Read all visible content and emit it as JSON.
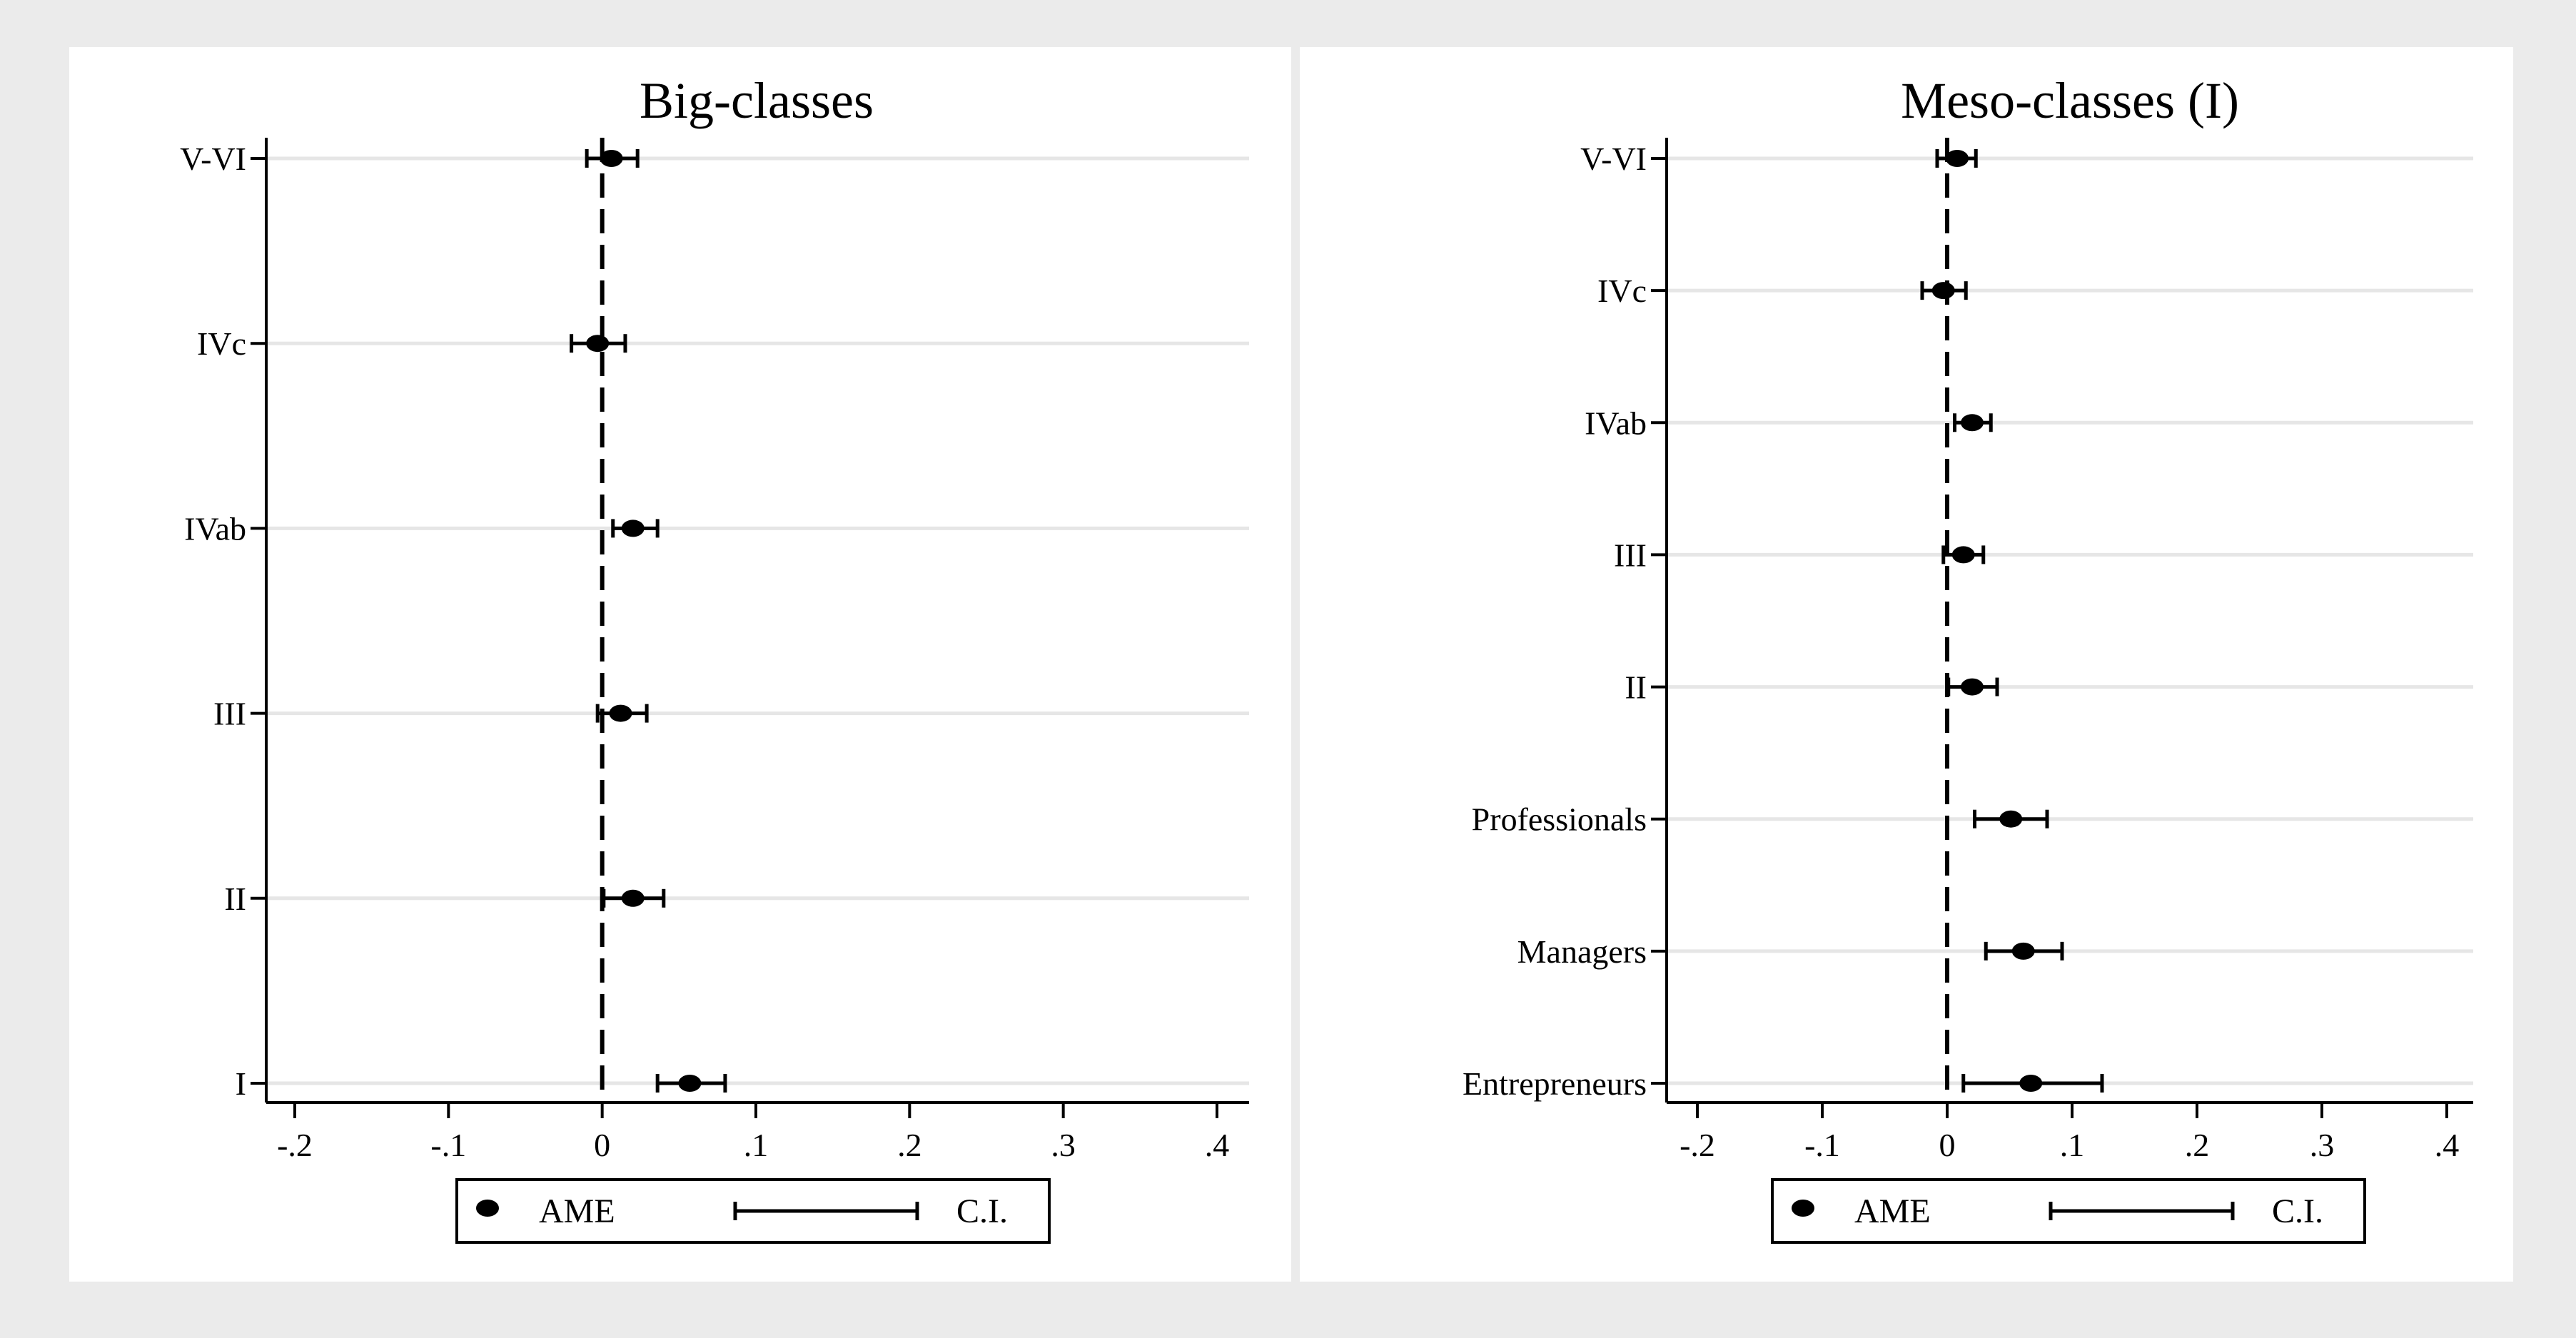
{
  "chart_data": [
    {
      "type": "scatter",
      "title": "Big-classes",
      "categories": [
        "V-VI",
        "IVc",
        "IVab",
        "III",
        "II",
        "I"
      ],
      "series": [
        {
          "name": "AME",
          "values": [
            0.006,
            -0.003,
            0.02,
            0.012,
            0.02,
            0.057
          ],
          "ci_low": [
            -0.01,
            -0.02,
            0.007,
            -0.003,
            0.001,
            0.036
          ],
          "ci_high": [
            0.023,
            0.015,
            0.036,
            0.029,
            0.04,
            0.08
          ]
        }
      ],
      "xlim": [
        -0.2,
        0.4
      ],
      "xticks": [
        -0.2,
        -0.1,
        0,
        0.1,
        0.2,
        0.3,
        0.4
      ],
      "xtick_labels": [
        "-.2",
        "-.1",
        "0",
        ".1",
        ".2",
        ".3",
        ".4"
      ],
      "reference_line": 0,
      "grid": true,
      "legend": {
        "position": "bottom",
        "items": [
          "AME",
          "C.I."
        ]
      }
    },
    {
      "type": "scatter",
      "title": "Meso-classes (I)",
      "categories": [
        "V-VI",
        "IVc",
        "IVab",
        "III",
        "II",
        "Professionals",
        "Managers",
        "Entrepreneurs"
      ],
      "series": [
        {
          "name": "AME",
          "values": [
            0.008,
            -0.003,
            0.02,
            0.013,
            0.02,
            0.051,
            0.061,
            0.067
          ],
          "ci_low": [
            -0.008,
            -0.02,
            0.006,
            -0.003,
            0.001,
            0.022,
            0.031,
            0.013
          ],
          "ci_high": [
            0.023,
            0.015,
            0.035,
            0.029,
            0.04,
            0.08,
            0.092,
            0.124
          ]
        }
      ],
      "xlim": [
        -0.2,
        0.4
      ],
      "xticks": [
        -0.2,
        -0.1,
        0,
        0.1,
        0.2,
        0.3,
        0.4
      ],
      "xtick_labels": [
        "-.2",
        "-.1",
        "0",
        ".1",
        ".2",
        ".3",
        ".4"
      ],
      "reference_line": 0,
      "grid": true,
      "legend": {
        "position": "bottom",
        "items": [
          "AME",
          "C.I."
        ]
      }
    }
  ]
}
